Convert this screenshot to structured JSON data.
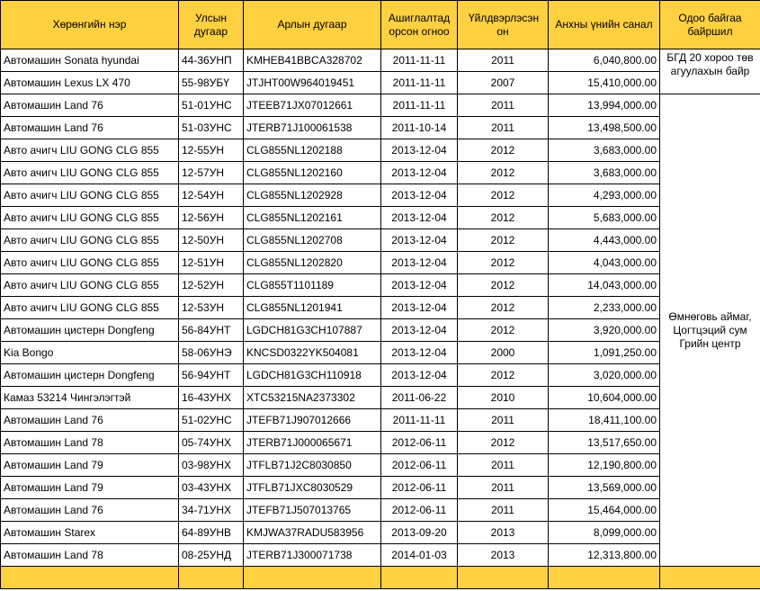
{
  "table": {
    "header": [
      "Хөрөнгийн нэр",
      "Улсын дугаар",
      "Арлын дугаар",
      "Ашиглалтад орсон огноо",
      "Үйлдвэрлэсэн он",
      "Анхны үнийн санал",
      "Одоо байгаа байршил"
    ],
    "rows": [
      [
        "Автомашин Sonata hyundai",
        "44-36УНП",
        "KMHEB41BBCA328702",
        "2011-11-11",
        "2011",
        "6,040,800.00"
      ],
      [
        "Автомашин Lexus LX 470",
        "55-98УБҮ",
        "JTJHT00W964019451",
        "2011-11-11",
        "2007",
        "15,410,000.00"
      ],
      [
        "Автомашин Land 76",
        "51-01УНС",
        "JTEEB71JX07012661",
        "2011-11-11",
        "2011",
        "13,994,000.00"
      ],
      [
        "Автомашин Land 76",
        "51-03УНС",
        "JTERB71J100061538",
        "2011-10-14",
        "2011",
        "13,498,500.00"
      ],
      [
        "Авто ачигч  LIU GONG CLG 855",
        "12-55УН",
        "CLG855NL1202188",
        "2013-12-04",
        "2012",
        "3,683,000.00"
      ],
      [
        "Авто ачигч  LIU GONG CLG 855",
        "12-57УН",
        "CLG855NL1202160",
        "2013-12-04",
        "2012",
        "3,683,000.00"
      ],
      [
        "Авто ачигч  LIU GONG CLG 855",
        "12-54УН",
        "CLG855NL1202928",
        "2013-12-04",
        "2012",
        "4,293,000.00"
      ],
      [
        "Авто ачигч  LIU GONG CLG 855",
        "12-56УН",
        "CLG855NL1202161",
        "2013-12-04",
        "2012",
        "5,683,000.00"
      ],
      [
        "Авто ачигч  LIU GONG CLG 855",
        "12-50УН",
        "CLG855NL1202708",
        "2013-12-04",
        "2012",
        "4,443,000.00"
      ],
      [
        "Авто ачигч  LIU GONG CLG 855",
        "12-51УН",
        "CLG855NL1202820",
        "2013-12-04",
        "2012",
        "4,043,000.00"
      ],
      [
        "Авто ачигч  LIU GONG CLG 855",
        "12-52УН",
        "CLG855T1101189",
        "2013-12-04",
        "2012",
        "14,043,000.00"
      ],
      [
        "Авто ачигч  LIU GONG CLG 855",
        "12-53УН",
        "CLG855NL1201941",
        "2013-12-04",
        "2012",
        "2,233,000.00"
      ],
      [
        "Автомашин цистерн Dongfeng",
        "56-84УНТ",
        "LGDCH81G3CH107887",
        "2013-12-04",
        "2012",
        "3,920,000.00"
      ],
      [
        "Kia Bongo",
        "58-06УНЭ",
        "KNCSD0322YK504081",
        "2013-12-04",
        "2000",
        "1,091,250.00"
      ],
      [
        "Автомашин цистерн Dongfeng",
        "56-94УНТ",
        "LGDCH81G3CH110918",
        "2013-12-04",
        "2012",
        "3,020,000.00"
      ],
      [
        "Камаз 53214 Чингэлэгтэй",
        "16-43УНХ",
        "XTC53215NA2373302",
        "2011-06-22",
        "2010",
        "10,604,000.00"
      ],
      [
        "Автомашин Land 76",
        "51-02УНС",
        "JTEFB71J907012666",
        "2011-11-11",
        "2011",
        "18,411,100.00"
      ],
      [
        "Автомашин Land 78",
        "05-74УНХ",
        "JTERB71J000065671",
        "2012-06-11",
        "2012",
        "13,517,650.00"
      ],
      [
        "Автомашин Land 79",
        "03-98УНХ",
        "JTFLB71J2C8030850",
        "2012-06-11",
        "2011",
        "12,190,800.00"
      ],
      [
        "Автомашин Land 79",
        "03-43УНХ",
        "JTFLB71JXC8030529",
        "2012-06-11",
        "2011",
        "13,569,000.00"
      ],
      [
        "Автомашин Land 76",
        "34-71УНХ",
        "JTEFB71J507013765",
        "2012-06-11",
        "2011",
        "15,464,000.00"
      ],
      [
        "Автомашин Starex",
        "64-89УНВ",
        "KMJWA37RADU583956",
        "2013-09-20",
        "2013",
        "8,099,000.00"
      ],
      [
        "Автомашин Land 78",
        "08-25УНД",
        "JTERB71J300071738",
        "2014-01-03",
        "2013",
        "12,313,800.00"
      ]
    ],
    "locations": [
      "БГД 20 хороо төв агуулахын байр",
      "Өмнөговь аймаг, Цогтцэций сум Грийн центр"
    ]
  }
}
